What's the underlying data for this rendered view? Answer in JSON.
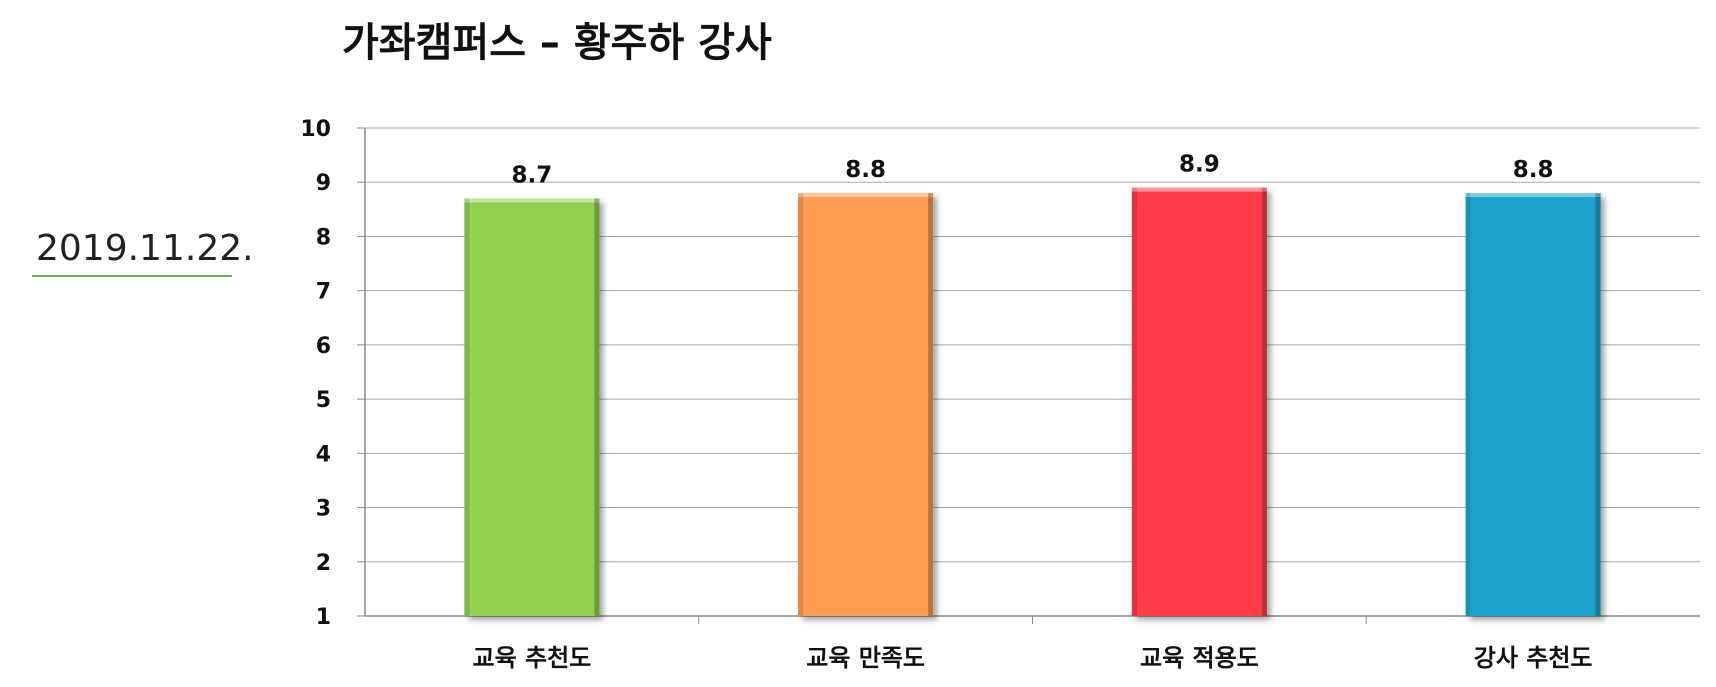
{
  "title": "가좌캠퍼스 – 황주하 강사",
  "date": "2019.11.22.",
  "chart_data": {
    "type": "bar",
    "title": "가좌캠퍼스 – 황주하 강사",
    "xlabel": "",
    "ylabel": "",
    "categories": [
      "교육 추천도",
      "교육 만족도",
      "교육 적용도",
      "강사 추천도"
    ],
    "values": [
      8.7,
      8.8,
      8.9,
      8.8
    ],
    "data_labels": [
      "8.7",
      "8.8",
      "8.9",
      "8.8"
    ],
    "bar_colors": [
      "#92d050",
      "#ff9a4f",
      "#ff3b45",
      "#1aa3cc"
    ],
    "ylim": [
      1,
      10
    ],
    "yticks": [
      1,
      2,
      3,
      4,
      5,
      6,
      7,
      8,
      9,
      10
    ],
    "grid": true,
    "legend": "none"
  }
}
